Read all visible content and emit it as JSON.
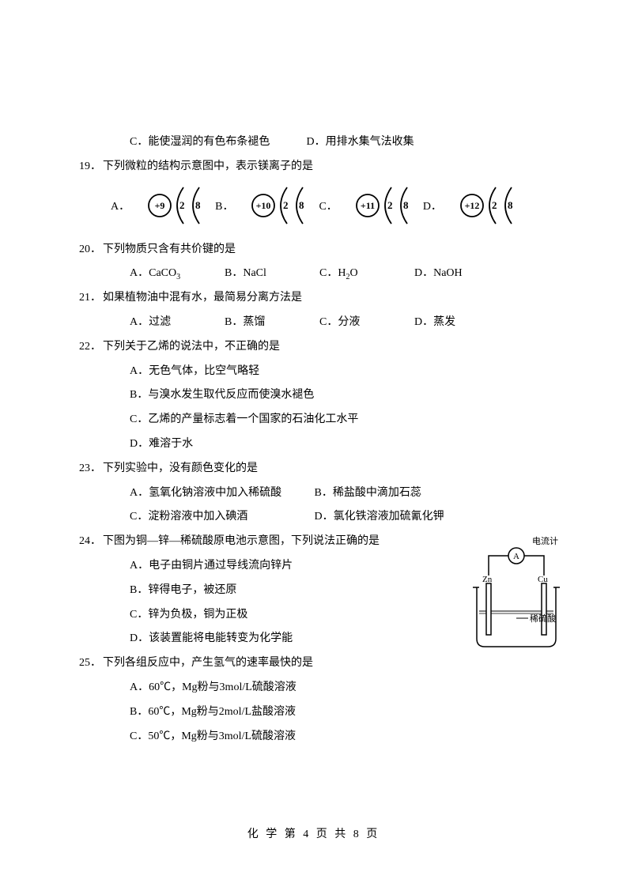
{
  "q18_cont": {
    "C": "C．能使湿润的有色布条褪色",
    "D": "D．用排水集气法收集"
  },
  "q19": {
    "num": "19．",
    "stem": "下列微粒的结构示意图中，表示镁离子的是",
    "labels": [
      "A．",
      "B．",
      "C．",
      "D．"
    ],
    "nuclei": [
      "+9",
      "+10",
      "+11",
      "+12"
    ],
    "shells": [
      "2",
      "8"
    ]
  },
  "q20": {
    "num": "20．",
    "stem": "下列物质只含有共价键的是",
    "opts": {
      "A": "A．CaCO",
      "A_sub": "3",
      "B": "B．NaCl",
      "C": "C．H",
      "C_sub": "2",
      "C_tail": "O",
      "D": "D．NaOH"
    }
  },
  "q21": {
    "num": "21．",
    "stem": "如果植物油中混有水，最简易分离方法是",
    "opts": {
      "A": "A．过滤",
      "B": "B．蒸馏",
      "C": "C．分液",
      "D": "D．蒸发"
    }
  },
  "q22": {
    "num": "22．",
    "stem": "下列关于乙烯的说法中，不正确的是",
    "opts": {
      "A": "A．无色气体，比空气略轻",
      "B": "B．与溴水发生取代反应而使溴水褪色",
      "C": "C．乙烯的产量标志着一个国家的石油化工水平",
      "D": "D．难溶于水"
    }
  },
  "q23": {
    "num": "23．",
    "stem": "下列实验中，没有颜色变化的是",
    "opts": {
      "A": "A．氢氧化钠溶液中加入稀硫酸",
      "B": "B．稀盐酸中滴加石蕊",
      "C": "C．淀粉溶液中加入碘酒",
      "D": "D．氯化铁溶液加硫氰化钾"
    }
  },
  "q24": {
    "num": "24．",
    "stem": "下图为铜—锌—稀硫酸原电池示意图，下列说法正确的是",
    "opts": {
      "A": "A．电子由铜片通过导线流向锌片",
      "B": "B．锌得电子，被还原",
      "C": "C．锌为负极，铜为正极",
      "D": "D．该装置能将电能转变为化学能"
    },
    "fig": {
      "meter": "电流计",
      "A": "A",
      "Zn": "Zn",
      "Cu": "Cu",
      "acid": "稀硫酸"
    }
  },
  "q25": {
    "num": "25．",
    "stem": "下列各组反应中，产生氢气的速率最快的是",
    "opts": {
      "A": "A．60℃，Mg粉与3mol/L硫酸溶液",
      "B": "B．60℃，Mg粉与2mol/L盐酸溶液",
      "C": "C．50℃，Mg粉与3mol/L硫酸溶液"
    }
  },
  "footer": "化 学 第 4 页 共 8 页"
}
